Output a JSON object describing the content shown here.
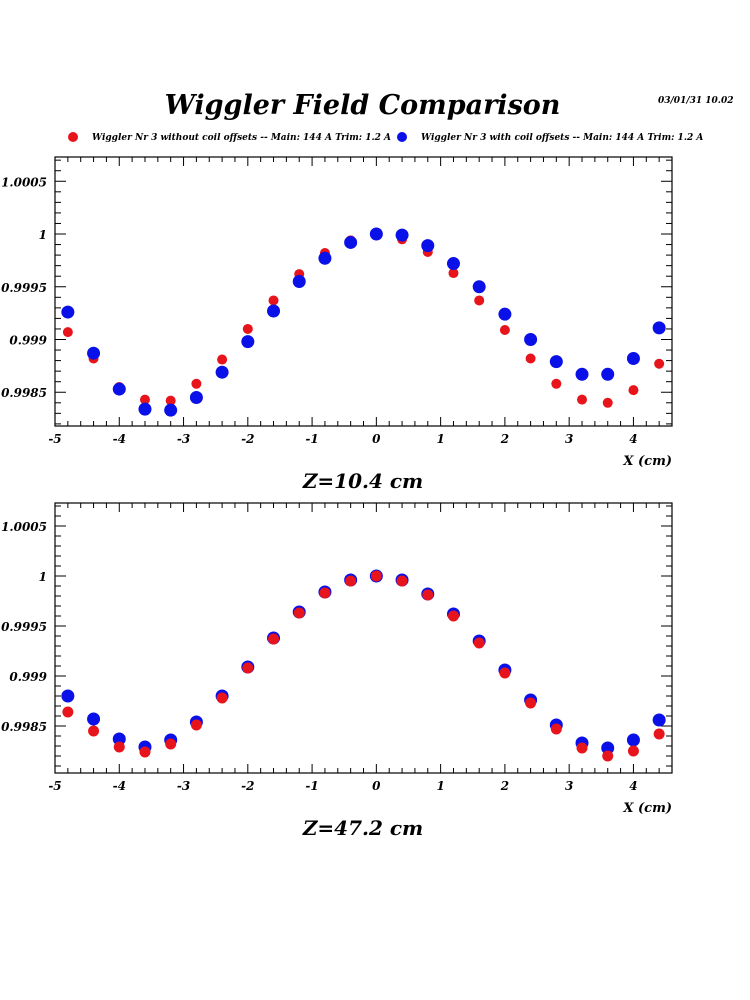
{
  "header": {
    "title": "Wiggler Field Comparison",
    "datestamp": "03/01/31   10.02"
  },
  "legend": [
    {
      "label": "Wiggler Nr 3 without coil offsets --  Main: 144 A    Trim: 1.2 A",
      "color": "#e8141c"
    },
    {
      "label": "Wiggler Nr 3 with coil offsets --  Main: 144 A    Trim: 1.2 A",
      "color": "#0a10e8"
    }
  ],
  "chart_data": [
    {
      "type": "scatter",
      "title": "Z=10.4 cm",
      "xlabel": "X (cm)",
      "ylabel": "",
      "xlim": [
        -5,
        4.6
      ],
      "ylim": [
        0.99818,
        1.00073
      ],
      "xticks": [
        -5,
        -4,
        -3,
        -2,
        -1,
        0,
        1,
        2,
        3,
        4
      ],
      "xtick_labels": [
        "-5",
        "-4",
        "-3",
        "-2",
        "-1",
        "0",
        "1",
        "2",
        "3",
        "4"
      ],
      "yticks": [
        0.9985,
        0.999,
        0.9995,
        1,
        1.0005
      ],
      "ytick_labels": [
        "0.9985",
        "0.999",
        "0.9995",
        "1",
        "1.0005"
      ],
      "x": [
        -4.8,
        -4.4,
        -4.0,
        -3.6,
        -3.2,
        -2.8,
        -2.4,
        -2.0,
        -1.6,
        -1.2,
        -0.8,
        -0.4,
        0.0,
        0.4,
        0.8,
        1.2,
        1.6,
        2.0,
        2.4,
        2.8,
        3.2,
        3.6,
        4.0,
        4.4
      ],
      "series": [
        {
          "name": "without coil offsets",
          "color": "#e8141c",
          "values": [
            0.99907,
            0.99882,
            0.99855,
            0.99843,
            0.99842,
            0.99858,
            0.99881,
            0.9991,
            0.99937,
            0.99962,
            0.99982,
            0.99994,
            1.0,
            0.99995,
            0.99983,
            0.99963,
            0.99937,
            0.99909,
            0.99882,
            0.99858,
            0.99843,
            0.9984,
            0.99852,
            0.99877
          ]
        },
        {
          "name": "with coil offsets",
          "color": "#0a10e8",
          "values": [
            0.99926,
            0.99887,
            0.99853,
            0.99834,
            0.99833,
            0.99845,
            0.99869,
            0.99898,
            0.99927,
            0.99955,
            0.99977,
            0.99992,
            1.0,
            0.99999,
            0.99989,
            0.99972,
            0.9995,
            0.99924,
            0.999,
            0.99879,
            0.99867,
            0.99867,
            0.99882,
            0.99911
          ]
        }
      ]
    },
    {
      "type": "scatter",
      "title": "Z=47.2 cm",
      "xlabel": "X (cm)",
      "ylabel": "",
      "xlim": [
        -5,
        4.6
      ],
      "ylim": [
        0.99803,
        1.00073
      ],
      "xticks": [
        -5,
        -4,
        -3,
        -2,
        -1,
        0,
        1,
        2,
        3,
        4
      ],
      "xtick_labels": [
        "-5",
        "-4",
        "-3",
        "-2",
        "-1",
        "0",
        "1",
        "2",
        "3",
        "4"
      ],
      "yticks": [
        0.9985,
        0.999,
        0.9995,
        1,
        1.0005
      ],
      "ytick_labels": [
        "0.9985",
        "0.999",
        "0.9995",
        "1",
        "1.0005"
      ],
      "x": [
        -4.8,
        -4.4,
        -4.0,
        -3.6,
        -3.2,
        -2.8,
        -2.4,
        -2.0,
        -1.6,
        -1.2,
        -0.8,
        -0.4,
        0.0,
        0.4,
        0.8,
        1.2,
        1.6,
        2.0,
        2.4,
        2.8,
        3.2,
        3.6,
        4.0,
        4.4
      ],
      "series": [
        {
          "name": "with coil offsets",
          "color": "#0a10e8",
          "values": [
            0.9988,
            0.99857,
            0.99837,
            0.99829,
            0.99836,
            0.99854,
            0.9988,
            0.99909,
            0.99938,
            0.99964,
            0.99984,
            0.99996,
            1.0,
            0.99996,
            0.99982,
            0.99962,
            0.99935,
            0.99906,
            0.99876,
            0.99851,
            0.99833,
            0.99828,
            0.99836,
            0.99856
          ]
        },
        {
          "name": "without coil offsets",
          "color": "#e8141c",
          "values": [
            0.99864,
            0.99845,
            0.99829,
            0.99824,
            0.99832,
            0.99851,
            0.99878,
            0.99908,
            0.99937,
            0.99963,
            0.99983,
            0.99995,
            1.0,
            0.99995,
            0.99981,
            0.9996,
            0.99933,
            0.99903,
            0.99873,
            0.99847,
            0.99828,
            0.9982,
            0.99825,
            0.99842
          ]
        }
      ]
    }
  ]
}
